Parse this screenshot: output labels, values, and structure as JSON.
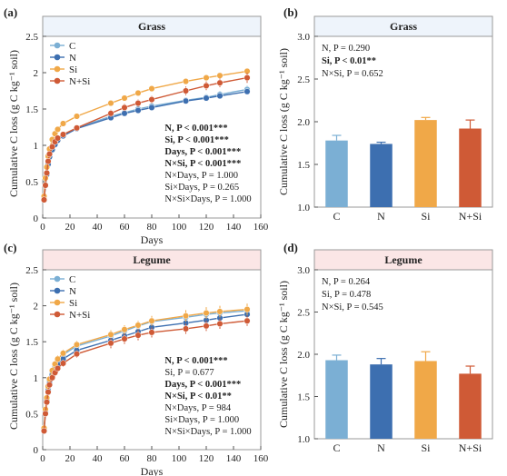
{
  "colors": {
    "C": "#7bafd4",
    "N": "#3d6fb0",
    "Si": "#f0a848",
    "N+Si": "#cf5a36",
    "grass_banner": "#eef4fb",
    "legume_banner": "#fbe6e6",
    "axis": "#555555"
  },
  "chart_data": [
    {
      "panel": "(a)",
      "type": "line",
      "title": "Grass",
      "xlabel": "Days",
      "ylabel": "Cumulative C loss (g C kg⁻¹ soil)",
      "xlim": [
        0,
        160
      ],
      "ylim": [
        0,
        2.5
      ],
      "xticks": [
        "0",
        "20",
        "40",
        "60",
        "80",
        "100",
        "120",
        "140",
        "160"
      ],
      "yticks": [
        "0",
        "0.5",
        "1",
        "1.5",
        "2",
        "2.5"
      ],
      "legend": [
        "C",
        "N",
        "Si",
        "N+Si"
      ],
      "x": [
        1,
        2,
        3,
        4,
        5,
        7,
        9,
        11,
        15,
        25,
        50,
        60,
        70,
        80,
        105,
        120,
        130,
        150
      ],
      "series": [
        {
          "name": "C",
          "values": [
            0.25,
            0.45,
            0.6,
            0.75,
            0.85,
            0.95,
            1.02,
            1.08,
            1.14,
            1.24,
            1.4,
            1.45,
            1.5,
            1.54,
            1.62,
            1.66,
            1.7,
            1.77
          ],
          "err": [
            0.02,
            0.02,
            0.03,
            0.03,
            0.03,
            0.03,
            0.03,
            0.03,
            0.03,
            0.03,
            0.04,
            0.04,
            0.04,
            0.04,
            0.04,
            0.05,
            0.05,
            0.05
          ]
        },
        {
          "name": "N",
          "values": [
            0.25,
            0.45,
            0.6,
            0.74,
            0.84,
            0.94,
            1.01,
            1.07,
            1.13,
            1.23,
            1.38,
            1.44,
            1.48,
            1.52,
            1.61,
            1.65,
            1.68,
            1.74
          ],
          "err": [
            0.02,
            0.02,
            0.03,
            0.03,
            0.03,
            0.03,
            0.03,
            0.03,
            0.03,
            0.03,
            0.03,
            0.03,
            0.03,
            0.03,
            0.03,
            0.03,
            0.03,
            0.03
          ]
        },
        {
          "name": "Si",
          "values": [
            0.3,
            0.55,
            0.7,
            0.85,
            0.95,
            1.08,
            1.16,
            1.22,
            1.3,
            1.4,
            1.58,
            1.65,
            1.72,
            1.78,
            1.88,
            1.93,
            1.96,
            2.02
          ],
          "err": [
            0.02,
            0.02,
            0.03,
            0.03,
            0.03,
            0.03,
            0.03,
            0.03,
            0.03,
            0.03,
            0.04,
            0.04,
            0.04,
            0.04,
            0.04,
            0.04,
            0.04,
            0.04
          ]
        },
        {
          "name": "N+Si",
          "values": [
            0.25,
            0.45,
            0.62,
            0.78,
            0.88,
            0.98,
            1.05,
            1.1,
            1.15,
            1.24,
            1.44,
            1.52,
            1.58,
            1.63,
            1.75,
            1.82,
            1.86,
            1.93
          ],
          "err": [
            0.02,
            0.02,
            0.03,
            0.03,
            0.03,
            0.03,
            0.03,
            0.03,
            0.03,
            0.03,
            0.05,
            0.05,
            0.05,
            0.05,
            0.06,
            0.06,
            0.06,
            0.07
          ]
        }
      ],
      "stats": [
        {
          "text": "N, P < 0.001***",
          "bold": true
        },
        {
          "text": "Si, P < 0.001***",
          "bold": true
        },
        {
          "text": "Days, P < 0.001***",
          "bold": true
        },
        {
          "text": "N×Si, P < 0.001***",
          "bold": true
        },
        {
          "text": "N×Days, P = 1.000",
          "bold": false
        },
        {
          "text": "Si×Days, P = 0.265",
          "bold": false
        },
        {
          "text": "N×Si×Days, P = 1.000",
          "bold": false
        }
      ]
    },
    {
      "panel": "(b)",
      "type": "bar",
      "title": "Grass",
      "ylabel": "Cumulative C loss (g C kg⁻¹ soil)",
      "ylim": [
        1.0,
        3.0
      ],
      "yticks": [
        "1.0",
        "1.5",
        "2.0",
        "2.5",
        "3.0"
      ],
      "categories": [
        "C",
        "N",
        "Si",
        "N+Si"
      ],
      "values": [
        1.78,
        1.74,
        2.02,
        1.92
      ],
      "err": [
        0.06,
        0.02,
        0.03,
        0.1
      ],
      "stats": [
        {
          "text": "N, P = 0.290",
          "bold": false
        },
        {
          "text": "Si, P < 0.01**",
          "bold": true
        },
        {
          "text": "N×Si, P = 0.652",
          "bold": false
        }
      ]
    },
    {
      "panel": "(c)",
      "type": "line",
      "title": "Legume",
      "xlabel": "Days",
      "ylabel": "Cumulative C loss (g C kg⁻¹ soil)",
      "xlim": [
        0,
        160
      ],
      "ylim": [
        0,
        2.5
      ],
      "xticks": [
        "0",
        "20",
        "40",
        "60",
        "80",
        "100",
        "120",
        "140",
        "160"
      ],
      "yticks": [
        "0",
        "0.5",
        "1",
        "1.5",
        "2",
        "2.5"
      ],
      "legend": [
        "C",
        "N",
        "Si",
        "N+Si"
      ],
      "x": [
        1,
        2,
        3,
        4,
        5,
        7,
        9,
        11,
        15,
        25,
        50,
        60,
        70,
        80,
        105,
        120,
        130,
        150
      ],
      "series": [
        {
          "name": "C",
          "values": [
            0.3,
            0.55,
            0.7,
            0.85,
            0.95,
            1.08,
            1.17,
            1.24,
            1.32,
            1.44,
            1.58,
            1.65,
            1.72,
            1.78,
            1.84,
            1.88,
            1.9,
            1.93
          ],
          "err": [
            0.02,
            0.03,
            0.03,
            0.04,
            0.04,
            0.05,
            0.05,
            0.05,
            0.05,
            0.05,
            0.06,
            0.06,
            0.06,
            0.06,
            0.07,
            0.07,
            0.07,
            0.07
          ]
        },
        {
          "name": "N",
          "values": [
            0.28,
            0.52,
            0.68,
            0.82,
            0.92,
            1.04,
            1.12,
            1.18,
            1.26,
            1.38,
            1.52,
            1.58,
            1.64,
            1.7,
            1.76,
            1.8,
            1.83,
            1.88
          ],
          "err": [
            0.02,
            0.03,
            0.03,
            0.04,
            0.04,
            0.05,
            0.05,
            0.05,
            0.05,
            0.05,
            0.06,
            0.06,
            0.06,
            0.06,
            0.07,
            0.07,
            0.07,
            0.07
          ]
        },
        {
          "name": "Si",
          "values": [
            0.3,
            0.56,
            0.72,
            0.88,
            0.98,
            1.1,
            1.19,
            1.26,
            1.34,
            1.46,
            1.6,
            1.67,
            1.73,
            1.79,
            1.86,
            1.9,
            1.92,
            1.95
          ],
          "err": [
            0.02,
            0.03,
            0.03,
            0.04,
            0.04,
            0.05,
            0.05,
            0.05,
            0.05,
            0.05,
            0.06,
            0.06,
            0.06,
            0.07,
            0.08,
            0.08,
            0.08,
            0.08
          ]
        },
        {
          "name": "N+Si",
          "values": [
            0.26,
            0.5,
            0.66,
            0.8,
            0.9,
            1.0,
            1.07,
            1.13,
            1.2,
            1.33,
            1.48,
            1.54,
            1.59,
            1.63,
            1.68,
            1.72,
            1.75,
            1.79
          ],
          "err": [
            0.02,
            0.03,
            0.03,
            0.04,
            0.04,
            0.05,
            0.05,
            0.05,
            0.05,
            0.05,
            0.07,
            0.07,
            0.07,
            0.07,
            0.07,
            0.07,
            0.07,
            0.07
          ]
        }
      ],
      "stats": [
        {
          "text": "N, P < 0.001***",
          "bold": true
        },
        {
          "text": "Si, P = 0.677",
          "bold": false
        },
        {
          "text": "Days, P < 0.001***",
          "bold": true
        },
        {
          "text": "N×Si, P < 0.01**",
          "bold": true
        },
        {
          "text": "N×Days, P = 984",
          "bold": false
        },
        {
          "text": "Si×Days, P = 1.000",
          "bold": false
        },
        {
          "text": "N×Si×Days, P = 1.000",
          "bold": false
        }
      ]
    },
    {
      "panel": "(d)",
      "type": "bar",
      "title": "Legume",
      "ylabel": "Cumulative C loss (g C kg⁻¹ soil)",
      "ylim": [
        1.0,
        3.0
      ],
      "yticks": [
        "1.0",
        "1.5",
        "2.0",
        "2.5",
        "3.0"
      ],
      "categories": [
        "C",
        "N",
        "Si",
        "N+Si"
      ],
      "values": [
        1.93,
        1.88,
        1.92,
        1.77
      ],
      "err": [
        0.06,
        0.07,
        0.11,
        0.09
      ],
      "stats": [
        {
          "text": "N, P = 0.264",
          "bold": false
        },
        {
          "text": "Si, P = 0.478",
          "bold": false
        },
        {
          "text": "N×Si, P = 0.545",
          "bold": false
        }
      ]
    }
  ]
}
